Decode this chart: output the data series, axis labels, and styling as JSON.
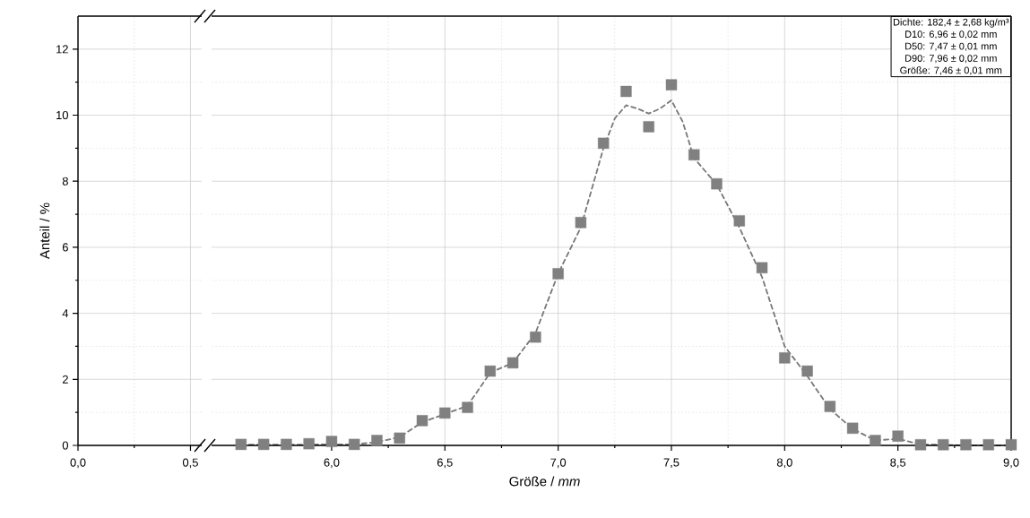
{
  "chart_data": [
    {
      "type": "scatter",
      "xlim": [
        0,
        0.55
      ],
      "ylim": [
        0,
        13
      ],
      "xticks": [
        {
          "value": 0,
          "label": "0,0"
        },
        {
          "value": 0.5,
          "label": "0,5"
        }
      ],
      "yticks": [
        0,
        2,
        4,
        6,
        8,
        10,
        12
      ],
      "grid": true,
      "ylabel": "Anteil / %"
    },
    {
      "type": "scatter",
      "xlim": [
        5.47,
        9.0
      ],
      "ylim": [
        0,
        13
      ],
      "xticks": [
        {
          "value": 6.0,
          "label": "6,0"
        },
        {
          "value": 6.5,
          "label": "6,5"
        },
        {
          "value": 7.0,
          "label": "7,0"
        },
        {
          "value": 7.5,
          "label": "7,5"
        },
        {
          "value": 8.0,
          "label": "8,0"
        },
        {
          "value": 8.5,
          "label": "8,5"
        },
        {
          "value": 9.0,
          "label": "9,0"
        }
      ],
      "yticks": [
        0,
        2,
        4,
        6,
        8,
        10,
        12
      ],
      "grid": true,
      "tick_labels": "x",
      "xlabel": "Größe / *mm*",
      "annotations": [
        "Dichte: 182,4 ± 2,68 kg/m³",
        "D10: 6,96 ± 0,02 mm",
        "D50: 7,47 ± 0,01 mm",
        "D90: 7,96 ± 0,02 mm",
        "Größe: 7,46 ± 0,01 mm"
      ],
      "series": [
        {
          "type": "line",
          "color": "#777777",
          "line_style": "dashed",
          "marker": "none",
          "x": [
            5.6,
            5.8,
            6.0,
            6.1,
            6.2,
            6.3,
            6.4,
            6.5,
            6.6,
            6.7,
            6.8,
            6.9,
            7.0,
            7.1,
            7.2,
            7.25,
            7.3,
            7.35,
            7.4,
            7.45,
            7.5,
            7.55,
            7.6,
            7.7,
            7.8,
            7.9,
            8.0,
            8.1,
            8.2,
            8.3,
            8.4,
            8.5,
            8.6,
            8.8,
            9.0
          ],
          "values": [
            0.02,
            0.02,
            0.03,
            0.03,
            0.1,
            0.25,
            0.7,
            0.95,
            1.2,
            2.2,
            2.5,
            3.4,
            5.2,
            6.6,
            9.0,
            9.9,
            10.3,
            10.2,
            10.05,
            10.2,
            10.45,
            9.8,
            8.7,
            7.9,
            6.6,
            5.1,
            3.0,
            2.1,
            1.1,
            0.5,
            0.15,
            0.2,
            0.03,
            0.0,
            0.0
          ]
        },
        {
          "color": "#808080",
          "marker": "square",
          "x": [
            5.6,
            5.7,
            5.8,
            5.9,
            6.0,
            6.1,
            6.2,
            6.3,
            6.4,
            6.5,
            6.6,
            6.7,
            6.8,
            6.9,
            7.0,
            7.1,
            7.2,
            7.3,
            7.4,
            7.5,
            7.6,
            7.7,
            7.8,
            7.9,
            8.0,
            8.1,
            8.2,
            8.3,
            8.4,
            8.5,
            8.6,
            8.7,
            8.8,
            8.9,
            9.0
          ],
          "values": [
            0.03,
            0.03,
            0.03,
            0.05,
            0.12,
            0.03,
            0.15,
            0.22,
            0.75,
            0.98,
            1.15,
            2.25,
            2.5,
            3.28,
            5.2,
            6.75,
            9.15,
            10.72,
            9.65,
            10.92,
            8.8,
            7.92,
            6.8,
            5.38,
            2.65,
            2.25,
            1.18,
            0.52,
            0.15,
            0.28,
            0.02,
            0.02,
            0.02,
            0.02,
            0.02
          ]
        }
      ]
    }
  ]
}
